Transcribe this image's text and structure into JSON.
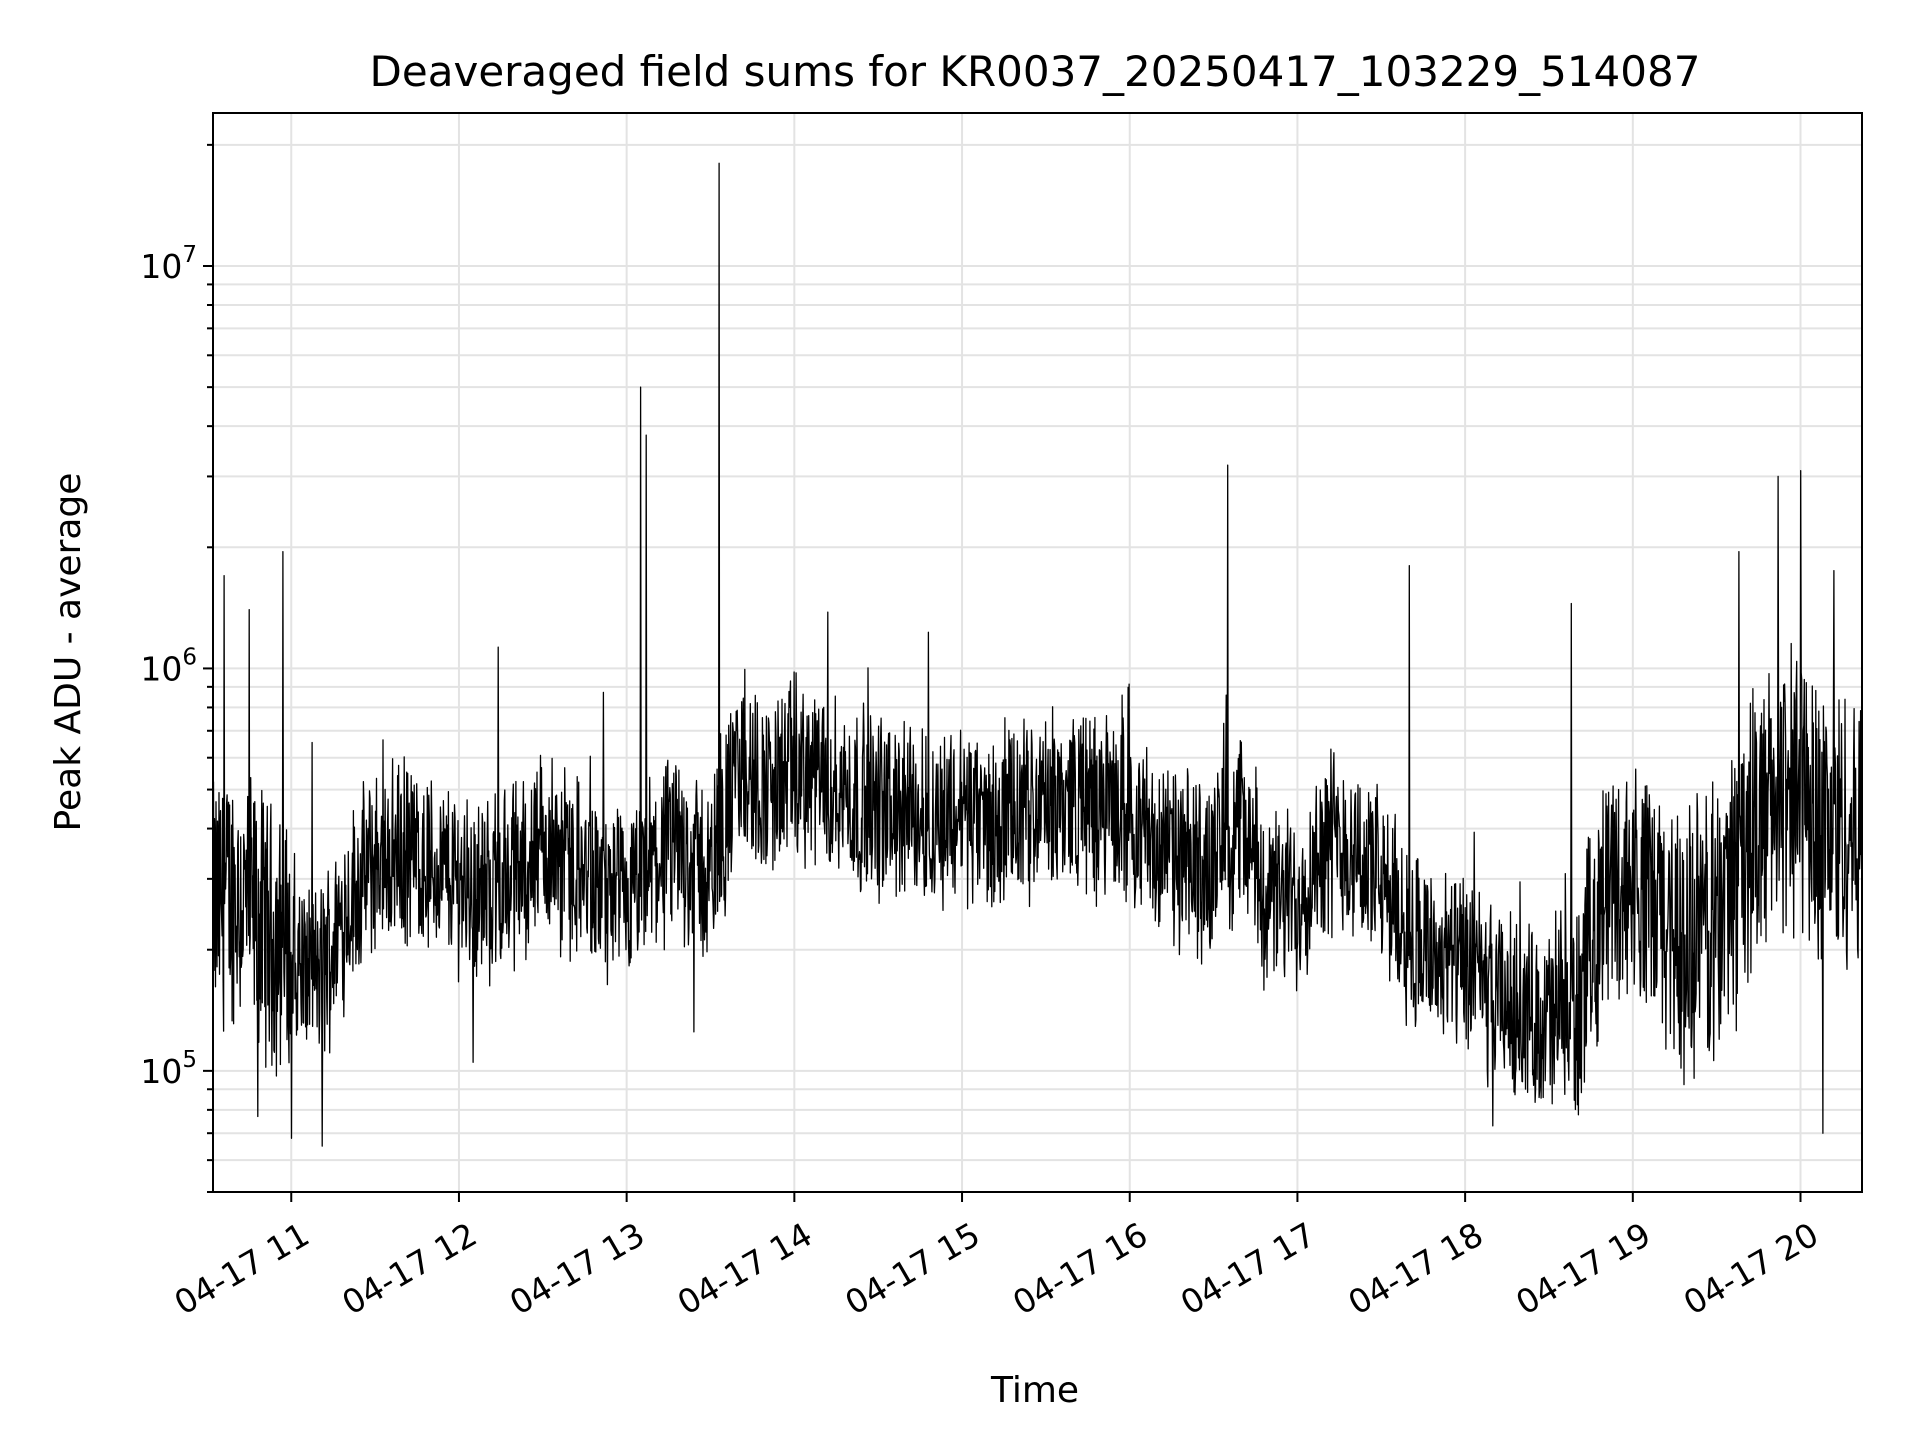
{
  "chart_data": {
    "type": "line",
    "title": "Deaveraged field sums for KR0037_20250417_103229_514087",
    "xlabel": "Time",
    "ylabel": "Peak ADU - average",
    "yscale": "log",
    "ylim": [
      50000,
      24000000
    ],
    "xlim": [
      "2025-04-17 10:32",
      "2025-04-17 20:22"
    ],
    "grid": true,
    "x_ticks": [
      "04-17 11",
      "04-17 12",
      "04-17 13",
      "04-17 14",
      "04-17 15",
      "04-17 16",
      "04-17 17",
      "04-17 18",
      "04-17 19",
      "04-17 20"
    ],
    "y_ticks": [
      {
        "base": "10",
        "exp": "5",
        "value": 100000
      },
      {
        "base": "10",
        "exp": "6",
        "value": 1000000
      },
      {
        "base": "10",
        "exp": "7",
        "value": 10000000
      }
    ],
    "series": [
      {
        "color": "#000000",
        "x": [
          "2025-04-17 10:32",
          "2025-04-17 10:40",
          "2025-04-17 10:50",
          "2025-04-17 11:00",
          "2025-04-17 11:10",
          "2025-04-17 11:20",
          "2025-04-17 11:30",
          "2025-04-17 11:40",
          "2025-04-17 11:50",
          "2025-04-17 12:00",
          "2025-04-17 12:10",
          "2025-04-17 12:20",
          "2025-04-17 12:30",
          "2025-04-17 12:40",
          "2025-04-17 12:50",
          "2025-04-17 13:00",
          "2025-04-17 13:10",
          "2025-04-17 13:20",
          "2025-04-17 13:30",
          "2025-04-17 13:40",
          "2025-04-17 13:50",
          "2025-04-17 14:00",
          "2025-04-17 14:10",
          "2025-04-17 14:20",
          "2025-04-17 14:30",
          "2025-04-17 14:40",
          "2025-04-17 14:50",
          "2025-04-17 15:00",
          "2025-04-17 15:10",
          "2025-04-17 15:20",
          "2025-04-17 15:30",
          "2025-04-17 15:40",
          "2025-04-17 15:50",
          "2025-04-17 16:00",
          "2025-04-17 16:10",
          "2025-04-17 16:20",
          "2025-04-17 16:30",
          "2025-04-17 16:40",
          "2025-04-17 16:50",
          "2025-04-17 17:00",
          "2025-04-17 17:10",
          "2025-04-17 17:20",
          "2025-04-17 17:30",
          "2025-04-17 17:40",
          "2025-04-17 17:50",
          "2025-04-17 18:00",
          "2025-04-17 18:10",
          "2025-04-17 18:20",
          "2025-04-17 18:30",
          "2025-04-17 18:40",
          "2025-04-17 18:50",
          "2025-04-17 19:00",
          "2025-04-17 19:10",
          "2025-04-17 19:20",
          "2025-04-17 19:30",
          "2025-04-17 19:40",
          "2025-04-17 19:50",
          "2025-04-17 20:00",
          "2025-04-17 20:10",
          "2025-04-17 20:22"
        ],
        "y": [
          250000,
          280000,
          230000,
          190000,
          170000,
          260000,
          330000,
          350000,
          320000,
          300000,
          280000,
          310000,
          360000,
          330000,
          280000,
          250000,
          330000,
          360000,
          300000,
          560000,
          500000,
          560000,
          520000,
          480000,
          450000,
          440000,
          420000,
          450000,
          400000,
          430000,
          450000,
          480000,
          450000,
          440000,
          360000,
          320000,
          330000,
          420000,
          260000,
          270000,
          380000,
          360000,
          290000,
          220000,
          190000,
          180000,
          150000,
          140000,
          130000,
          140000,
          290000,
          300000,
          240000,
          200000,
          240000,
          350000,
          450000,
          500000,
          400000,
          380000
        ]
      }
    ],
    "spikes": [
      {
        "x": "2025-04-17 10:36",
        "y": 1700000
      },
      {
        "x": "2025-04-17 10:45",
        "y": 1400000
      },
      {
        "x": "2025-04-17 10:48",
        "y": 1300000
      },
      {
        "x": "2025-04-17 10:57",
        "y": 1950000
      },
      {
        "x": "2025-04-17 12:14",
        "y": 1130000
      },
      {
        "x": "2025-04-17 13:05",
        "y": 5000000
      },
      {
        "x": "2025-04-17 13:07",
        "y": 3800000
      },
      {
        "x": "2025-04-17 13:33",
        "y": 18000000
      },
      {
        "x": "2025-04-17 14:12",
        "y": 1380000
      },
      {
        "x": "2025-04-17 14:48",
        "y": 1230000
      },
      {
        "x": "2025-04-17 16:35",
        "y": 3200000
      },
      {
        "x": "2025-04-17 17:40",
        "y": 1800000
      },
      {
        "x": "2025-04-17 18:38",
        "y": 1450000
      },
      {
        "x": "2025-04-17 19:38",
        "y": 1950000
      },
      {
        "x": "2025-04-17 19:52",
        "y": 3000000
      },
      {
        "x": "2025-04-17 20:00",
        "y": 3100000
      },
      {
        "x": "2025-04-17 20:12",
        "y": 1750000
      }
    ],
    "dips": [
      {
        "x": "2025-04-17 10:48",
        "y": 77000
      },
      {
        "x": "2025-04-17 11:00",
        "y": 68000
      },
      {
        "x": "2025-04-17 11:11",
        "y": 65000
      },
      {
        "x": "2025-04-17 12:05",
        "y": 105000
      },
      {
        "x": "2025-04-17 13:24",
        "y": 125000
      },
      {
        "x": "2025-04-17 18:10",
        "y": 73000
      },
      {
        "x": "2025-04-17 20:08",
        "y": 70000
      }
    ]
  }
}
